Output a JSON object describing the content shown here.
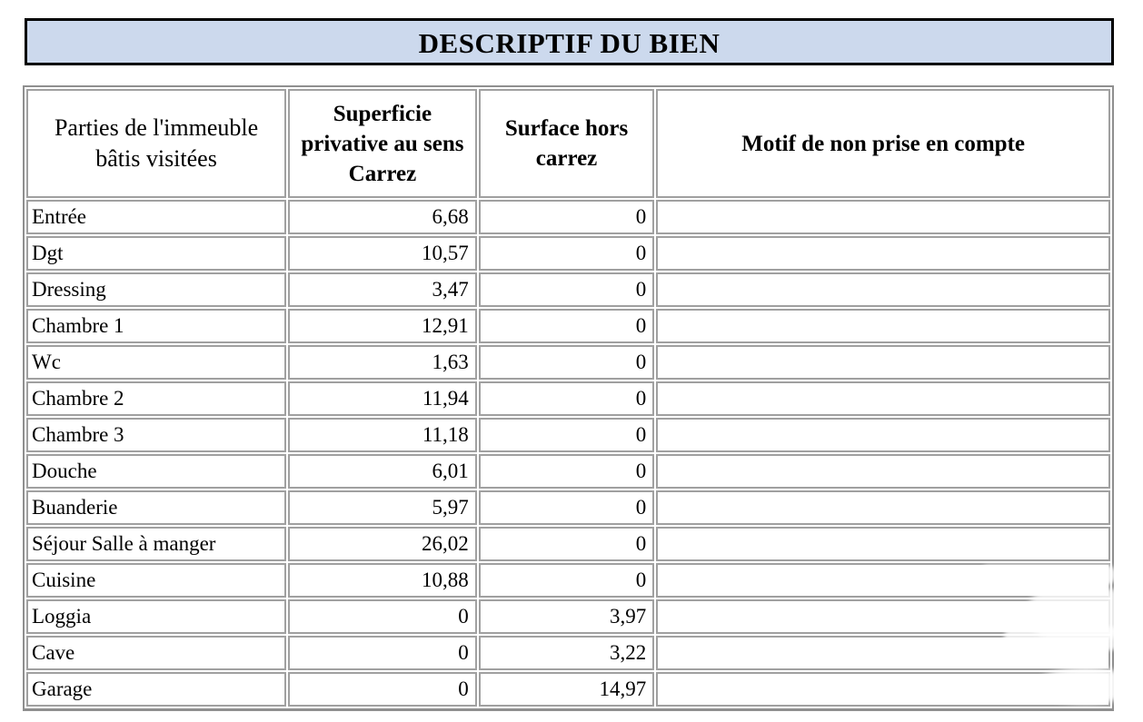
{
  "banner": {
    "title": "DESCRIPTIF DU BIEN"
  },
  "table": {
    "headers": [
      "Parties de l'immeuble bâtis visitées",
      "Superficie privative au sens Carrez",
      "Surface hors carrez",
      "Motif de non prise en compte"
    ],
    "rows": [
      {
        "partie": "Entrée",
        "superficie": "6,68",
        "hors": "0",
        "motif": ""
      },
      {
        "partie": "Dgt",
        "superficie": "10,57",
        "hors": "0",
        "motif": ""
      },
      {
        "partie": "Dressing",
        "superficie": "3,47",
        "hors": "0",
        "motif": ""
      },
      {
        "partie": "Chambre 1",
        "superficie": "12,91",
        "hors": "0",
        "motif": ""
      },
      {
        "partie": "Wc",
        "superficie": "1,63",
        "hors": "0",
        "motif": ""
      },
      {
        "partie": "Chambre 2",
        "superficie": "11,94",
        "hors": "0",
        "motif": ""
      },
      {
        "partie": "Chambre 3",
        "superficie": "11,18",
        "hors": "0",
        "motif": ""
      },
      {
        "partie": "Douche",
        "superficie": "6,01",
        "hors": "0",
        "motif": ""
      },
      {
        "partie": "Buanderie",
        "superficie": "5,97",
        "hors": "0",
        "motif": ""
      },
      {
        "partie": "Séjour Salle à manger",
        "superficie": "26,02",
        "hors": "0",
        "motif": ""
      },
      {
        "partie": "Cuisine",
        "superficie": "10,88",
        "hors": "0",
        "motif": ""
      },
      {
        "partie": "Loggia",
        "superficie": "0",
        "hors": "3,97",
        "motif": ""
      },
      {
        "partie": "Cave",
        "superficie": "0",
        "hors": "3,22",
        "motif": ""
      },
      {
        "partie": "Garage",
        "superficie": "0",
        "hors": "14,97",
        "motif": ""
      }
    ]
  },
  "colors": {
    "banner_bg": "#ccd9ed",
    "banner_border": "#000000",
    "grid": "#a0a0a0",
    "text": "#000000"
  }
}
